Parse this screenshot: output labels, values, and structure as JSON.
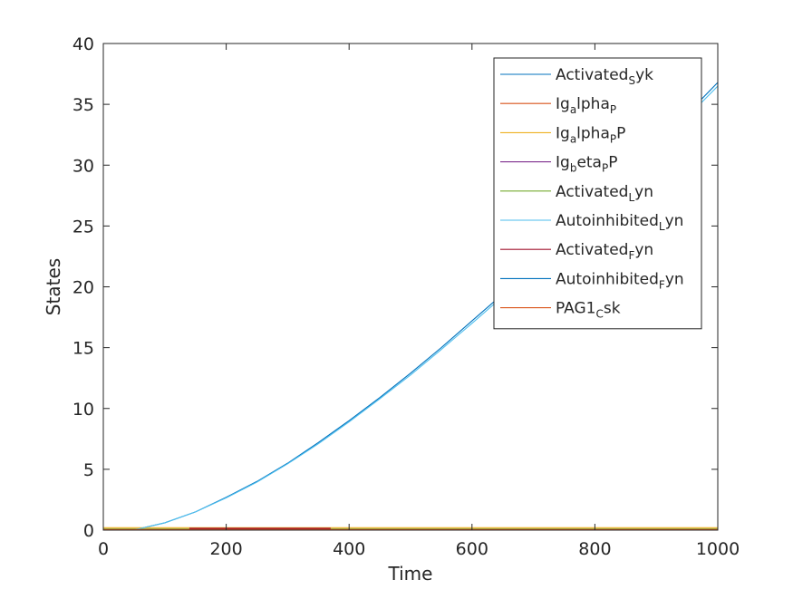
{
  "chart_data": {
    "type": "line",
    "title": "",
    "xlabel": "Time",
    "ylabel": "States",
    "xlim": [
      0,
      1000
    ],
    "ylim": [
      0,
      40
    ],
    "xticks": [
      0,
      200,
      400,
      600,
      800,
      1000
    ],
    "yticks": [
      0,
      5,
      10,
      15,
      20,
      25,
      30,
      35,
      40
    ],
    "grid": false,
    "legend_position": "top-right",
    "series": [
      {
        "name": "ActivatedSyk",
        "name_base": "Activated",
        "name_sub": "S",
        "name_rest": "yk",
        "color": "#0072BD",
        "x": [
          0,
          50,
          100,
          150,
          200,
          250,
          300,
          350,
          400,
          450,
          500,
          550,
          600,
          650,
          700,
          750,
          800,
          850,
          900,
          950,
          1000
        ],
        "y": [
          0,
          0.02,
          0.6,
          1.5,
          2.7,
          4.0,
          5.5,
          7.2,
          9.0,
          10.9,
          12.9,
          15.0,
          17.2,
          19.4,
          21.7,
          24.1,
          26.6,
          29.1,
          31.6,
          34.2,
          36.8
        ]
      },
      {
        "name": "Igalpha_P",
        "name_base": "Ig",
        "name_sub": "a",
        "name_rest": "lpha",
        "name_sub2": "P",
        "color": "#D95319",
        "x": [
          0,
          1000
        ],
        "y": [
          0,
          0
        ]
      },
      {
        "name": "Igalpha_PP",
        "name_base": "Ig",
        "name_sub": "a",
        "name_rest": "lpha",
        "name_sub2": "P",
        "name_rest2": "P",
        "color": "#EDB120",
        "x": [
          0,
          1000
        ],
        "y": [
          0.2,
          0.2
        ]
      },
      {
        "name": "Igbeta_PP",
        "name_base": "Ig",
        "name_sub": "b",
        "name_rest": "eta",
        "name_sub2": "P",
        "name_rest2": "P",
        "color": "#7E2F8E",
        "x": [
          0,
          1000
        ],
        "y": [
          0,
          0
        ]
      },
      {
        "name": "ActivatedLyn",
        "name_base": "Activated",
        "name_sub": "L",
        "name_rest": "yn",
        "color": "#77AC30",
        "x": [
          0,
          1000
        ],
        "y": [
          0.1,
          0.1
        ]
      },
      {
        "name": "AutoinhibitedLyn",
        "name_base": "Autoinhibited",
        "name_sub": "L",
        "name_rest": "yn",
        "color": "#4DBEEE",
        "x": [
          0,
          50,
          100,
          150,
          200,
          250,
          300,
          350,
          400,
          450,
          500,
          550,
          600,
          650,
          700,
          750,
          800,
          850,
          900,
          950,
          1000
        ],
        "y": [
          0,
          0.02,
          0.6,
          1.5,
          2.65,
          3.95,
          5.45,
          7.1,
          8.9,
          10.8,
          12.75,
          14.85,
          17.0,
          19.2,
          21.5,
          23.9,
          26.35,
          28.85,
          31.35,
          33.95,
          36.5
        ]
      },
      {
        "name": "ActivatedFyn",
        "name_base": "Activated",
        "name_sub": "F",
        "name_rest": "yn",
        "color": "#A2142F",
        "x": [
          140,
          370
        ],
        "y": [
          0.12,
          0.12
        ]
      },
      {
        "name": "AutoinhibitedFyn",
        "name_base": "Autoinhibited",
        "name_sub": "F",
        "name_rest": "yn",
        "color": "#0072BD",
        "x": [
          0,
          1000
        ],
        "y": [
          0,
          0
        ]
      },
      {
        "name": "PAG1Csk",
        "name_base": "PAG1",
        "name_sub": "C",
        "name_rest": "sk",
        "color": "#D95319",
        "x": [
          0,
          1000
        ],
        "y": [
          0.05,
          0.05
        ]
      }
    ]
  }
}
